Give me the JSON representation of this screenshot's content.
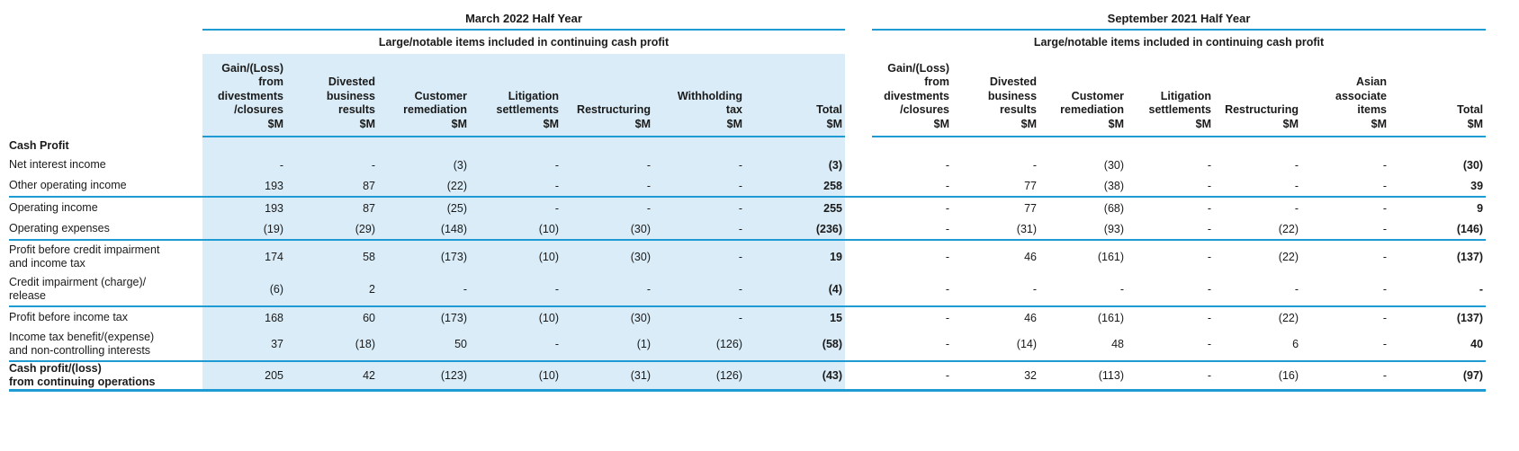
{
  "colors": {
    "line": "#1d9bd2",
    "shade": "#daecf7",
    "ink": "#1a1a1a"
  },
  "table": {
    "march_title": "March 2022 Half Year",
    "sept_title": "September 2021 Half Year",
    "march_subtitle": "Large/notable items included in continuing cash profit",
    "sept_subtitle": "Large/notable items included in continuing cash profit",
    "march_columns": [
      "Gain/(Loss)\nfrom\ndivestments\n/closures\n$M",
      "Divested\nbusiness\nresults\n$M",
      "Customer\nremediation\n$M",
      "Litigation\nsettlements\n$M",
      "Restructuring\n$M",
      "Withholding\ntax\n$M",
      "Total\n$M"
    ],
    "sept_columns": [
      "Gain/(Loss)\nfrom\ndivestments\n/closures\n$M",
      "Divested\nbusiness\nresults\n$M",
      "Customer\nremediation\n$M",
      "Litigation\nsettlements\n$M",
      "Restructuring\n$M",
      "Asian\nassociate\nitems\n$M",
      "Total\n$M"
    ],
    "rows": [
      {
        "label": "Cash Profit",
        "bold": true,
        "size": "section",
        "border": "none",
        "march": [
          "",
          "",
          "",
          "",
          "",
          "",
          ""
        ],
        "sept": [
          "",
          "",
          "",
          "",
          "",
          "",
          ""
        ]
      },
      {
        "label": "Net interest income",
        "bold": false,
        "size": "single",
        "border": "none",
        "march": [
          "-",
          "-",
          "(3)",
          "-",
          "-",
          "-",
          "(3)"
        ],
        "sept": [
          "-",
          "-",
          "(30)",
          "-",
          "-",
          "-",
          "(30)"
        ]
      },
      {
        "label": "Other operating income",
        "bold": false,
        "size": "single",
        "border": "thin",
        "march": [
          "193",
          "87",
          "(22)",
          "-",
          "-",
          "-",
          "258"
        ],
        "sept": [
          "-",
          "77",
          "(38)",
          "-",
          "-",
          "-",
          "39"
        ]
      },
      {
        "label": "Operating income",
        "bold": false,
        "size": "single",
        "border": "none",
        "march": [
          "193",
          "87",
          "(25)",
          "-",
          "-",
          "-",
          "255"
        ],
        "sept": [
          "-",
          "77",
          "(68)",
          "-",
          "-",
          "-",
          "9"
        ]
      },
      {
        "label": "Operating expenses",
        "bold": false,
        "size": "single",
        "border": "thin",
        "march": [
          "(19)",
          "(29)",
          "(148)",
          "(10)",
          "(30)",
          "-",
          "(236)"
        ],
        "sept": [
          "-",
          "(31)",
          "(93)",
          "-",
          "(22)",
          "-",
          "(146)"
        ]
      },
      {
        "label": "Profit before credit impairment\nand income tax",
        "bold": false,
        "size": "double",
        "border": "none",
        "march": [
          "174",
          "58",
          "(173)",
          "(10)",
          "(30)",
          "-",
          "19"
        ],
        "sept": [
          "-",
          "46",
          "(161)",
          "-",
          "(22)",
          "-",
          "(137)"
        ]
      },
      {
        "label": "Credit impairment (charge)/\nrelease",
        "bold": false,
        "size": "double",
        "border": "thin",
        "march": [
          "(6)",
          "2",
          "-",
          "-",
          "-",
          "-",
          "(4)"
        ],
        "sept": [
          "-",
          "-",
          "-",
          "-",
          "-",
          "-",
          "-"
        ]
      },
      {
        "label": "Profit before income tax",
        "bold": false,
        "size": "single",
        "border": "none",
        "march": [
          "168",
          "60",
          "(173)",
          "(10)",
          "(30)",
          "-",
          "15"
        ],
        "sept": [
          "-",
          "46",
          "(161)",
          "-",
          "(22)",
          "-",
          "(137)"
        ]
      },
      {
        "label": "Income tax benefit/(expense)\nand non-controlling interests",
        "bold": false,
        "size": "double",
        "border": "thin",
        "march": [
          "37",
          "(18)",
          "50",
          "-",
          "(1)",
          "(126)",
          "(58)"
        ],
        "sept": [
          "-",
          "(14)",
          "48",
          "-",
          "6",
          "-",
          "40"
        ]
      },
      {
        "label": "Cash profit/(loss)\nfrom continuing operations",
        "bold": true,
        "size": "last",
        "border": "thick",
        "march": [
          "205",
          "42",
          "(123)",
          "(10)",
          "(31)",
          "(126)",
          "(43)"
        ],
        "sept": [
          "-",
          "32",
          "(113)",
          "-",
          "(16)",
          "-",
          "(97)"
        ]
      }
    ]
  }
}
